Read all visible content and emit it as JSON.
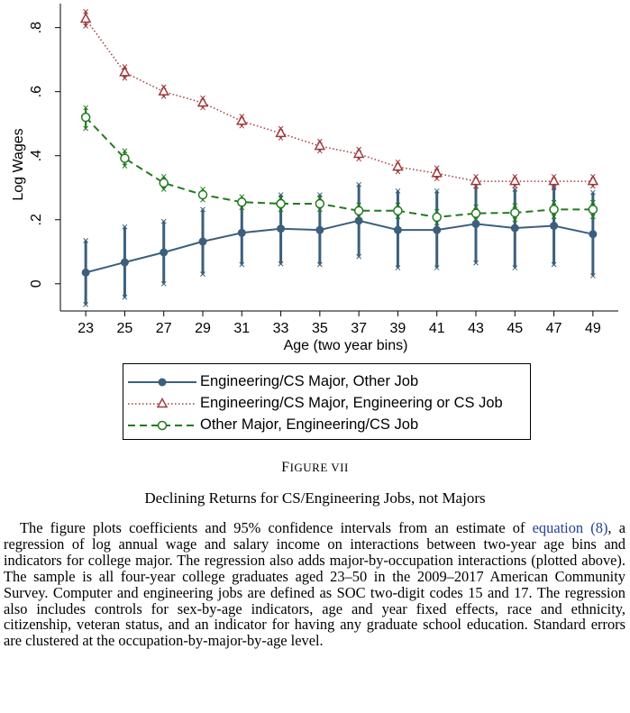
{
  "chart_data": {
    "type": "line",
    "xlabel": "Age (two year bins)",
    "ylabel": "Log Wages",
    "x": [
      23,
      25,
      27,
      29,
      31,
      33,
      35,
      37,
      39,
      41,
      43,
      45,
      47,
      49
    ],
    "x_ticks": [
      "23",
      "25",
      "27",
      "29",
      "31",
      "33",
      "35",
      "37",
      "39",
      "41",
      "43",
      "45",
      "47",
      "49"
    ],
    "y_ticks": [
      {
        "value": 0,
        "label": "0"
      },
      {
        "value": 0.2,
        "label": ".2"
      },
      {
        "value": 0.4,
        "label": ".4"
      },
      {
        "value": 0.6,
        "label": ".6"
      },
      {
        "value": 0.8,
        "label": ".8"
      }
    ],
    "ylim": [
      -0.085,
      0.875
    ],
    "xlim": [
      21.7,
      50.3
    ],
    "grid": false,
    "legend_position": "below",
    "series": [
      {
        "name": "Engineering/CS Major, Other Job",
        "color": "#3b5f7c",
        "style": "solid",
        "marker": "filled-circle",
        "values": [
          0.035,
          0.067,
          0.098,
          0.132,
          0.159,
          0.172,
          0.168,
          0.197,
          0.168,
          0.168,
          0.187,
          0.174,
          0.181,
          0.155
        ],
        "ci_low": [
          -0.065,
          -0.042,
          0.0,
          0.03,
          0.06,
          0.062,
          0.06,
          0.085,
          0.05,
          0.05,
          0.065,
          0.05,
          0.06,
          0.025
        ],
        "ci_high": [
          0.135,
          0.178,
          0.195,
          0.232,
          0.255,
          0.278,
          0.278,
          0.31,
          0.29,
          0.29,
          0.305,
          0.295,
          0.3,
          0.285
        ]
      },
      {
        "name": "Engineering/CS Major, Engineering or CS Job",
        "color": "#9e3a3e",
        "style": "dotted",
        "marker": "hollow-triangle",
        "values": [
          0.827,
          0.66,
          0.6,
          0.565,
          0.508,
          0.47,
          0.43,
          0.405,
          0.365,
          0.345,
          0.32,
          0.32,
          0.32,
          0.32
        ],
        "ci_low": [
          0.805,
          0.642,
          0.585,
          0.55,
          0.493,
          0.455,
          0.415,
          0.39,
          0.35,
          0.328,
          0.305,
          0.305,
          0.305,
          0.305
        ],
        "ci_high": [
          0.85,
          0.678,
          0.615,
          0.58,
          0.523,
          0.485,
          0.445,
          0.42,
          0.38,
          0.362,
          0.335,
          0.335,
          0.335,
          0.335
        ]
      },
      {
        "name": "Other Major, Engineering/CS Job",
        "color": "#227a1f",
        "style": "dashed",
        "marker": "hollow-circle",
        "values": [
          0.52,
          0.392,
          0.315,
          0.278,
          0.255,
          0.25,
          0.25,
          0.228,
          0.228,
          0.208,
          0.22,
          0.222,
          0.232,
          0.232
        ],
        "ci_low": [
          0.485,
          0.368,
          0.295,
          0.262,
          0.238,
          0.232,
          0.232,
          0.21,
          0.21,
          0.19,
          0.2,
          0.2,
          0.21,
          0.21
        ],
        "ci_high": [
          0.55,
          0.415,
          0.335,
          0.295,
          0.272,
          0.268,
          0.268,
          0.246,
          0.246,
          0.226,
          0.24,
          0.244,
          0.254,
          0.254
        ]
      }
    ]
  },
  "figure": {
    "title_prefix": "F",
    "title_rest": "IGURE VII",
    "subtitle": "Declining Returns for CS/Engineering Jobs, not Majors",
    "caption_before_link": "The figure plots coefficients and 95% confidence intervals from an estimate of",
    "caption_link": "equation (8)",
    "caption_after_link": ", a regression of log annual wage and salary income on interactions between two-year age bins and indicators for college major. The regression also adds major-by-occupation interactions (plotted above). The sample is all four-year college graduates aged 23–50 in the 2009–2017 American Community Survey. Computer and engineering jobs are defined as SOC two-digit codes 15 and 17. The regression also includes controls for sex-by-age indicators, age and year fixed effects, race and ethnicity, citizenship, veteran status, and an indicator for having any graduate school education. Standard errors are clustered at the occupation-by-major-by-age level."
  }
}
